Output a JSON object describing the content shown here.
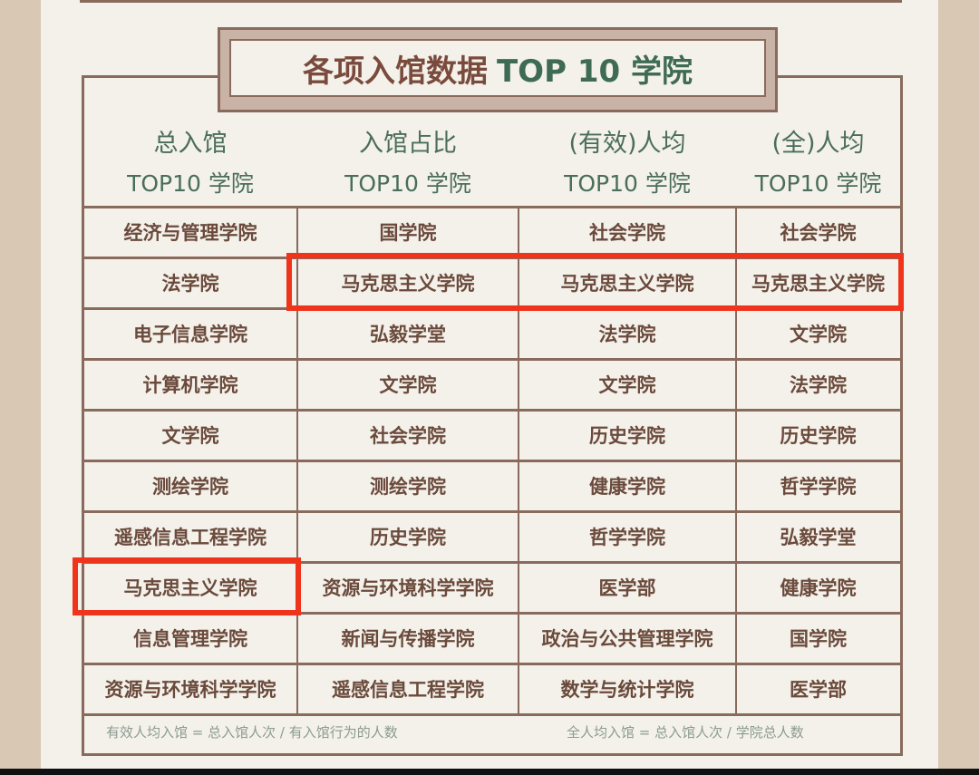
{
  "title": {
    "part1": "各项入馆数据",
    "part2": "TOP 10 学院"
  },
  "columns": [
    {
      "line1": "总入馆",
      "line2": "TOP10 学院"
    },
    {
      "line1": "入馆占比",
      "line2": "TOP10 学院"
    },
    {
      "line1": "(有效)人均",
      "line2": "TOP10 学院"
    },
    {
      "line1": "(全)人均",
      "line2": "TOP10 学院"
    }
  ],
  "rows": [
    [
      "经济与管理学院",
      "国学院",
      "社会学院",
      "社会学院"
    ],
    [
      "法学院",
      "马克思主义学院",
      "马克思主义学院",
      "马克思主义学院"
    ],
    [
      "电子信息学院",
      "弘毅学堂",
      "法学院",
      "文学院"
    ],
    [
      "计算机学院",
      "文学院",
      "文学院",
      "法学院"
    ],
    [
      "文学院",
      "社会学院",
      "历史学院",
      "历史学院"
    ],
    [
      "测绘学院",
      "测绘学院",
      "健康学院",
      "哲学学院"
    ],
    [
      "遥感信息工程学院",
      "历史学院",
      "哲学学院",
      "弘毅学堂"
    ],
    [
      "马克思主义学院",
      "资源与环境科学学院",
      "医学部",
      "健康学院"
    ],
    [
      "信息管理学院",
      "新闻与传播学院",
      "政治与公共管理学院",
      "国学院"
    ],
    [
      "资源与环境科学学院",
      "遥感信息工程学院",
      "数学与统计学院",
      "医学部"
    ]
  ],
  "footnotes": {
    "left": "有效人均入馆 = 总入馆人次 / 有入馆行为的人数",
    "right": "全人均入馆 = 总入馆人次 / 学院总人数"
  },
  "highlights": [
    {
      "row": 2,
      "columns": [
        2,
        3,
        4
      ]
    },
    {
      "row": 8,
      "columns": [
        1
      ]
    }
  ],
  "colors": {
    "highlight": "#f0341c",
    "cell_text": "#6b4a3c",
    "header_text": "#4b6d5c",
    "border": "#8a6a5c",
    "background": "#f3f1ea"
  }
}
